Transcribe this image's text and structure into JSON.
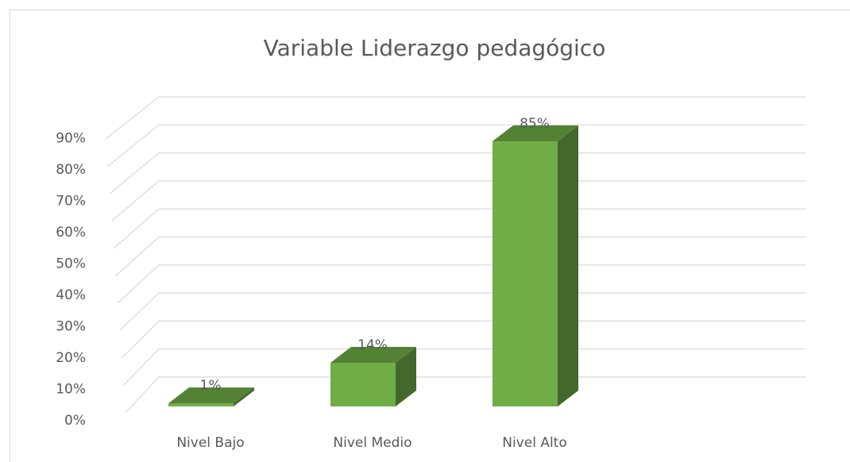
{
  "chart_data": {
    "type": "bar3d",
    "title": "Variable Liderazgo pedagógico",
    "categories": [
      "Nivel Bajo",
      "Nivel Medio",
      "Nivel Alto"
    ],
    "values": [
      1,
      14,
      85
    ],
    "value_labels": [
      "1%",
      "14%",
      "85%"
    ],
    "color": "#70ad47",
    "ylim": [
      0,
      100
    ],
    "yticks": [
      {
        "value": 0,
        "label": "0%"
      },
      {
        "value": 10,
        "label": "10%"
      },
      {
        "value": 20,
        "label": "20%"
      },
      {
        "value": 30,
        "label": "30%"
      },
      {
        "value": 40,
        "label": "40%"
      },
      {
        "value": 50,
        "label": "50%"
      },
      {
        "value": 60,
        "label": "60%"
      },
      {
        "value": 70,
        "label": "70%"
      },
      {
        "value": 80,
        "label": "80%"
      },
      {
        "value": 90,
        "label": "90%"
      }
    ],
    "grid": true
  }
}
